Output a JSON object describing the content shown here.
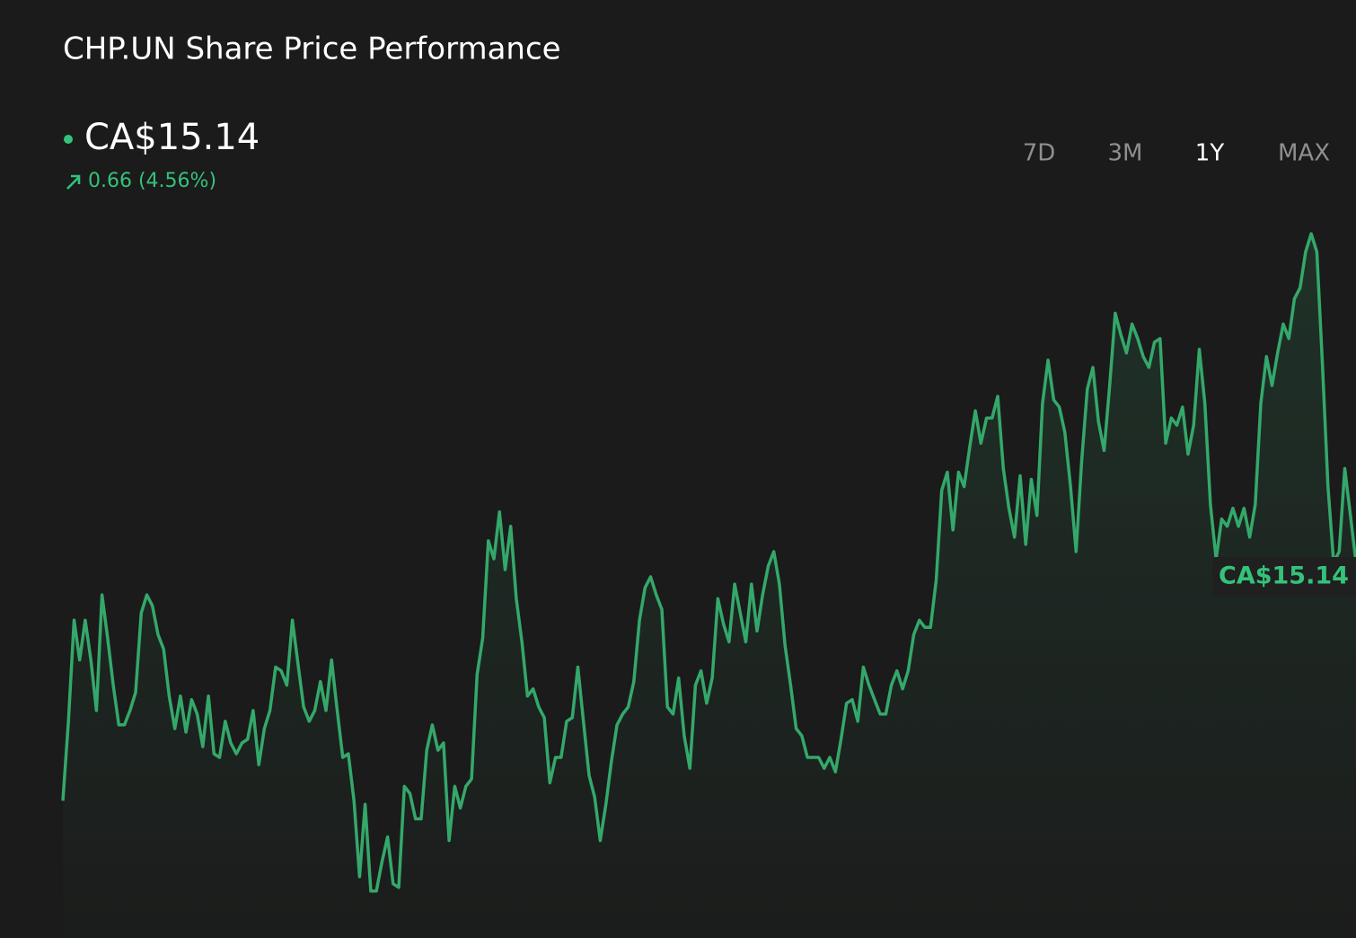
{
  "chart_data": {
    "type": "line",
    "title": "CHP.UN Share Price Performance",
    "price_label": "CA$15.14",
    "change_label": "0.66 (4.56%)",
    "ranges": [
      "7D",
      "3M",
      "1Y",
      "MAX"
    ],
    "selected_range_index": 2,
    "color": "#34a86a",
    "ylim": [
      14.1,
      16.15
    ],
    "values": [
      14.48,
      14.7,
      14.98,
      14.87,
      14.98,
      14.87,
      14.73,
      15.05,
      14.93,
      14.8,
      14.69,
      14.69,
      14.73,
      14.78,
      15.0,
      15.05,
      15.02,
      14.94,
      14.9,
      14.77,
      14.68,
      14.77,
      14.67,
      14.76,
      14.72,
      14.63,
      14.77,
      14.61,
      14.6,
      14.7,
      14.64,
      14.61,
      14.64,
      14.65,
      14.73,
      14.58,
      14.68,
      14.73,
      14.85,
      14.84,
      14.8,
      14.98,
      14.86,
      14.74,
      14.7,
      14.73,
      14.81,
      14.73,
      14.87,
      14.73,
      14.6,
      14.61,
      14.48,
      14.27,
      14.47,
      14.23,
      14.23,
      14.31,
      14.38,
      14.25,
      14.24,
      14.52,
      14.5,
      14.43,
      14.43,
      14.62,
      14.69,
      14.62,
      14.64,
      14.37,
      14.52,
      14.46,
      14.52,
      14.54,
      14.83,
      14.93,
      15.2,
      15.15,
      15.28,
      15.12,
      15.24,
      15.04,
      14.92,
      14.77,
      14.79,
      14.74,
      14.71,
      14.53,
      14.6,
      14.6,
      14.7,
      14.71,
      14.85,
      14.7,
      14.55,
      14.49,
      14.37,
      14.47,
      14.59,
      14.69,
      14.72,
      14.74,
      14.81,
      14.98,
      15.07,
      15.1,
      15.05,
      15.01,
      14.74,
      14.72,
      14.82,
      14.66,
      14.57,
      14.8,
      14.84,
      14.75,
      14.82,
      15.04,
      14.97,
      14.92,
      15.08,
      15.0,
      14.92,
      15.08,
      14.95,
      15.05,
      15.13,
      15.17,
      15.08,
      14.91,
      14.8,
      14.68,
      14.66,
      14.6,
      14.6,
      14.6,
      14.57,
      14.6,
      14.56,
      14.65,
      14.75,
      14.76,
      14.7,
      14.85,
      14.8,
      14.76,
      14.72,
      14.72,
      14.8,
      14.84,
      14.79,
      14.84,
      14.94,
      14.98,
      14.96,
      14.96,
      15.09,
      15.34,
      15.39,
      15.23,
      15.39,
      15.35,
      15.46,
      15.56,
      15.47,
      15.54,
      15.54,
      15.6,
      15.4,
      15.29,
      15.21,
      15.38,
      15.19,
      15.37,
      15.27,
      15.58,
      15.7,
      15.59,
      15.57,
      15.5,
      15.35,
      15.17,
      15.42,
      15.62,
      15.68,
      15.53,
      15.45,
      15.63,
      15.83,
      15.77,
      15.72,
      15.8,
      15.76,
      15.71,
      15.68,
      15.75,
      15.76,
      15.47,
      15.54,
      15.52,
      15.57,
      15.44,
      15.52,
      15.73,
      15.58,
      15.3,
      15.15,
      15.26,
      15.24,
      15.29,
      15.24,
      15.29,
      15.21,
      15.3,
      15.58,
      15.71,
      15.63,
      15.72,
      15.8,
      15.76,
      15.87,
      15.9,
      16.0,
      16.05,
      16.0,
      15.69,
      15.35,
      15.14,
      15.17,
      15.4,
      15.27,
      15.14
    ]
  }
}
